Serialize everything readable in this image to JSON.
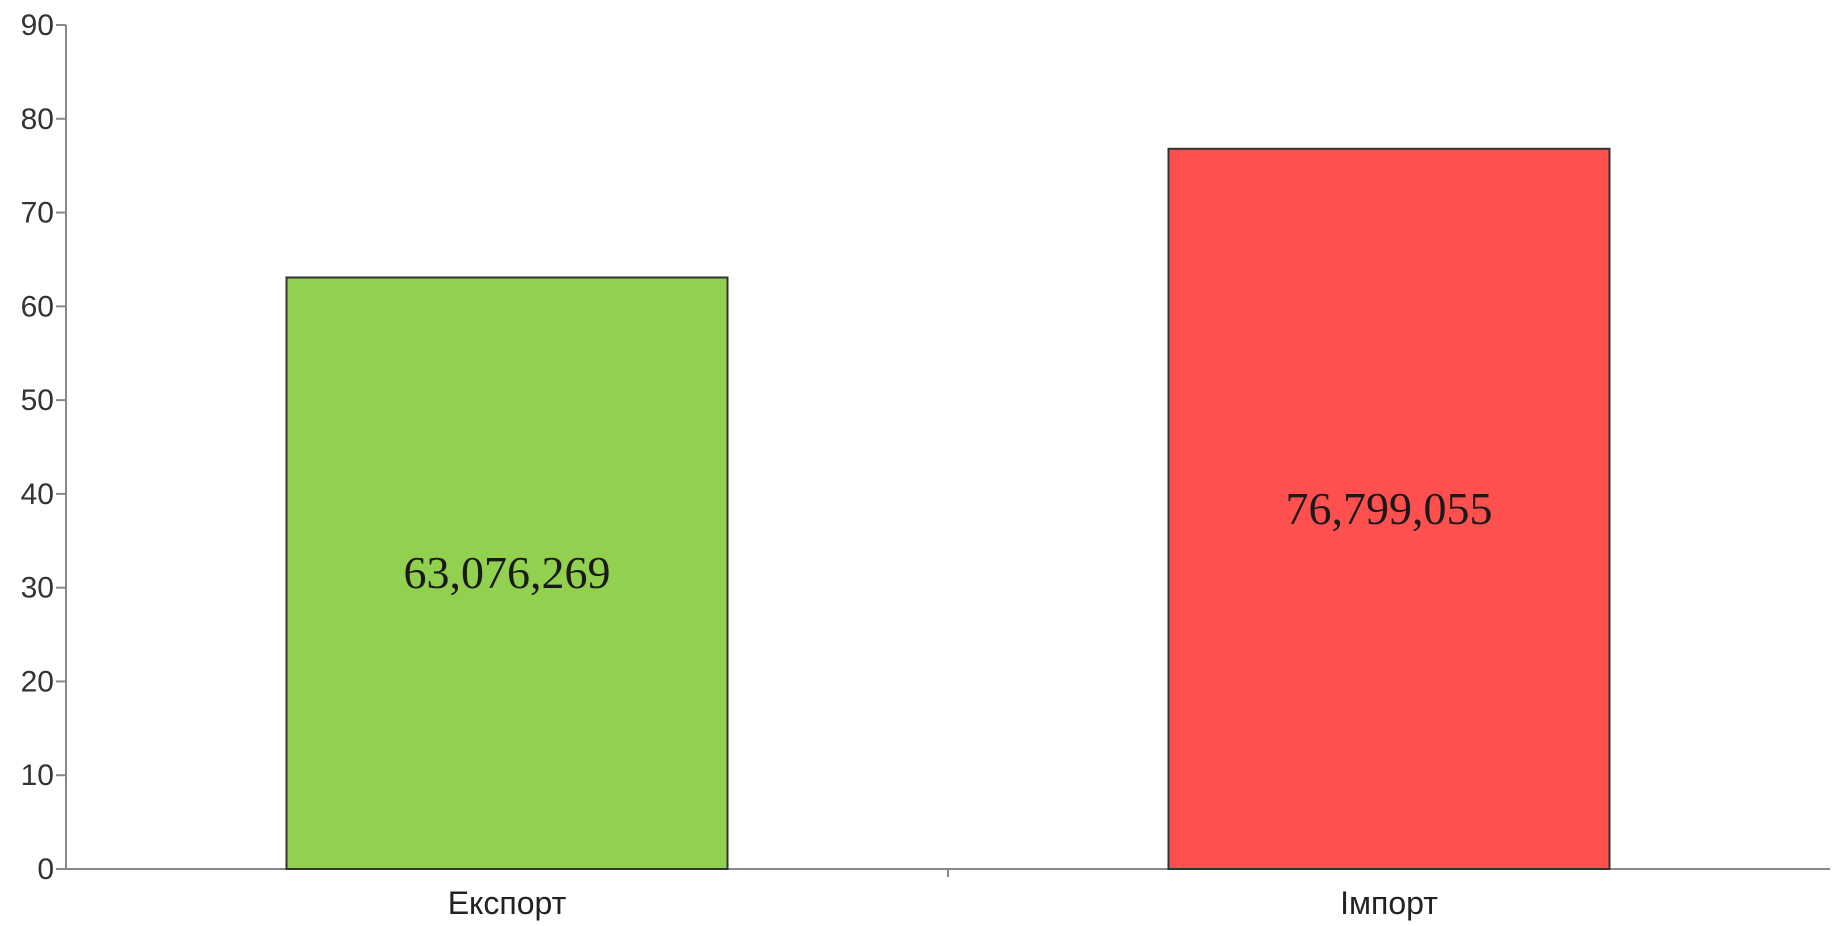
{
  "chart_data": {
    "type": "bar",
    "title": "",
    "xlabel": "",
    "ylabel": "",
    "categories": [
      "Експорт",
      "Імпорт"
    ],
    "values": [
      63.076269,
      76.799055
    ],
    "data_labels": [
      "63,076,269",
      "76,799,055"
    ],
    "colors": [
      "#92d050",
      "#ff5050"
    ],
    "ylim": [
      0,
      90
    ],
    "yticks": [
      0,
      10,
      20,
      30,
      40,
      50,
      60,
      70,
      80,
      90
    ],
    "ytick_labels": [
      "0",
      "10",
      "20",
      "30",
      "40",
      "50",
      "60",
      "70",
      "80",
      "90"
    ],
    "grid": false,
    "legend": "none"
  }
}
